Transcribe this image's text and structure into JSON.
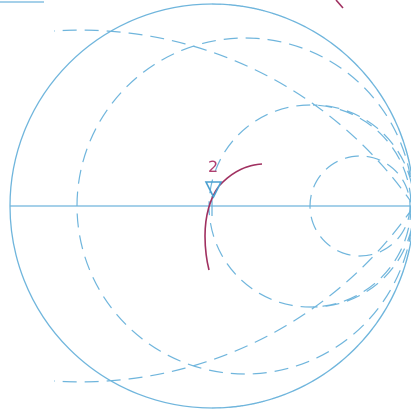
{
  "smith_chart": {
    "marker": {
      "label": "2"
    },
    "colors": {
      "grid": "#6fb5dc",
      "trace": "#a03060",
      "marker_label": "#b04070"
    }
  }
}
